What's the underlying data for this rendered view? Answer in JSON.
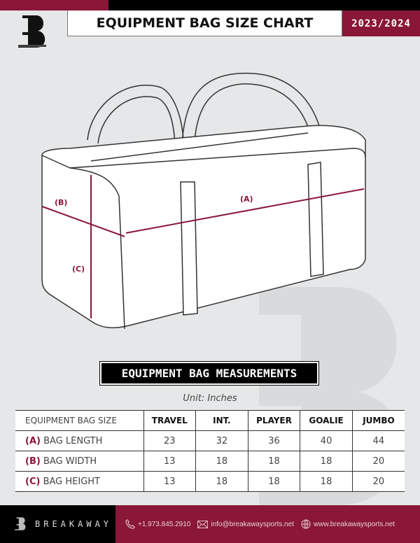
{
  "header": {
    "title": "EQUIPMENT BAG SIZE CHART",
    "season": "2023/2024",
    "logo_text": "B"
  },
  "diagram": {
    "labels": {
      "a": "(A)",
      "b": "(B)",
      "c": "(C)"
    }
  },
  "section_title": "EQUIPMENT BAG MEASUREMENTS",
  "unit": "Unit: Inches",
  "table": {
    "header": [
      "EQUIPMENT BAG SIZE",
      "TRAVEL",
      "INT.",
      "PLAYER",
      "GOALIE",
      "JUMBO"
    ],
    "rows": [
      {
        "code": "(A)",
        "label": "BAG LENGTH",
        "values": [
          "23",
          "32",
          "36",
          "40",
          "44"
        ]
      },
      {
        "code": "(B)",
        "label": "BAG WIDTH",
        "values": [
          "13",
          "18",
          "18",
          "18",
          "20"
        ]
      },
      {
        "code": "(C)",
        "label": "BAG HEIGHT",
        "values": [
          "13",
          "18",
          "18",
          "18",
          "20"
        ]
      }
    ]
  },
  "footer": {
    "brand": "BREAKAWAY",
    "phone": "+1.973.845.2910",
    "email": "info@breakawaysports.net",
    "website": "www.breakawaysports.net"
  },
  "colors": {
    "brand": "#8a1737",
    "background": "#e6e7e8"
  }
}
